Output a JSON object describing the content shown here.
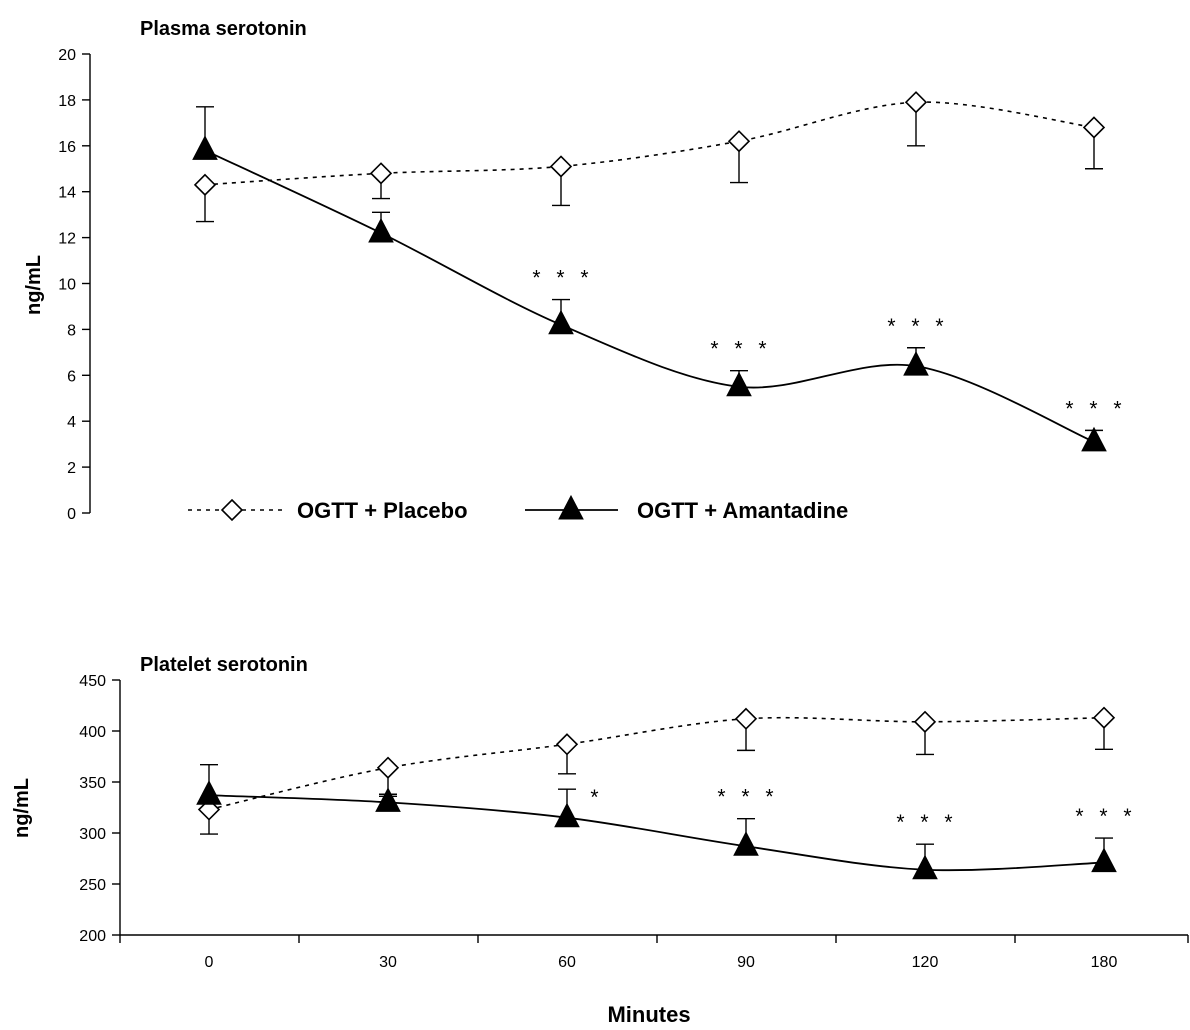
{
  "chart_data": [
    {
      "type": "line",
      "title": "Plasma serotonin",
      "ylabel": "ng/mL",
      "xlabel": "",
      "ylim": [
        0,
        20
      ],
      "yticks": [
        "0",
        "2",
        "4",
        "6",
        "8",
        "10",
        "12",
        "14",
        "16",
        "18",
        "20"
      ],
      "categories": [
        "0",
        "30",
        "60",
        "90",
        "120",
        "180"
      ],
      "show_x_axis_ticks": false,
      "grid": false,
      "legend_placement": "bottom-left",
      "series": [
        {
          "name": "OGTT + Placebo",
          "style": "dashed",
          "marker": "open-diamond",
          "values": [
            14.3,
            14.8,
            15.1,
            16.2,
            17.9,
            16.8
          ],
          "error_low": [
            12.7,
            null,
            13.4,
            14.4,
            16.0,
            15.0
          ],
          "error_high": [
            null,
            13.7,
            null,
            null,
            null,
            null
          ]
        },
        {
          "name": "OGTT + Amantadine",
          "style": "solid",
          "marker": "filled-triangle",
          "values": [
            15.8,
            12.2,
            8.2,
            5.5,
            6.4,
            3.1
          ],
          "error_high": [
            17.7,
            13.1,
            9.3,
            6.2,
            7.2,
            3.6
          ],
          "significance": [
            "",
            "",
            "* * *",
            "* * *",
            "* * *",
            "* * *"
          ]
        }
      ]
    },
    {
      "type": "line",
      "title": "Platelet serotonin",
      "ylabel": "ng/mL",
      "xlabel": "Minutes",
      "ylim": [
        200,
        450
      ],
      "yticks": [
        "200",
        "250",
        "300",
        "350",
        "400",
        "450"
      ],
      "categories": [
        "0",
        "30",
        "60",
        "90",
        "120",
        "180"
      ],
      "grid": false,
      "series": [
        {
          "name": "OGTT + Placebo",
          "style": "dashed",
          "marker": "open-diamond",
          "values": [
            323,
            364,
            387,
            412,
            409,
            413
          ],
          "error_low": [
            299,
            338,
            358,
            381,
            377,
            382
          ]
        },
        {
          "name": "OGTT + Amantadine",
          "style": "solid",
          "marker": "filled-triangle",
          "values": [
            337,
            330,
            315,
            287,
            264,
            271
          ],
          "error_high": [
            367,
            336,
            343,
            314,
            289,
            295
          ],
          "significance": [
            "",
            "",
            "*",
            "* * *",
            "* * *",
            "* * *"
          ]
        }
      ]
    }
  ]
}
